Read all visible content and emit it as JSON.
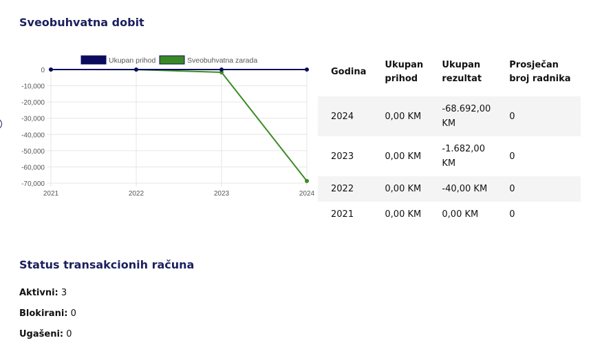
{
  "sections": {
    "profit_title": "Sveobuhvatna dobit",
    "status_title": "Status transakcionih računa"
  },
  "chart_data": {
    "type": "line",
    "x": [
      "2021",
      "2022",
      "2023",
      "2024"
    ],
    "series": [
      {
        "name": "Ukupan prihod",
        "color": "#0b0b5e",
        "values": [
          0,
          0,
          0,
          0
        ]
      },
      {
        "name": "Sveobuhvatna zarada",
        "color": "#3a8a23",
        "values": [
          0,
          -40,
          -1682,
          -68692
        ]
      }
    ],
    "y_ticks": [
      "0",
      "-10,000",
      "-20,000",
      "-30,000",
      "-40,000",
      "-50,000",
      "-60,000",
      "-70,000"
    ],
    "y_tick_values": [
      0,
      -10000,
      -20000,
      -30000,
      -40000,
      -50000,
      -60000,
      -70000
    ],
    "ylim": [
      -70000,
      0
    ],
    "legend_position": "top",
    "grid": true
  },
  "table": {
    "headers": [
      "Godina",
      "Ukupan prihod",
      "Ukupan rezultat",
      "Prosječan broj radnika"
    ],
    "rows": [
      [
        "2024",
        "0,00 KM",
        "-68.692,00 KM",
        "0"
      ],
      [
        "2023",
        "0,00 KM",
        "-1.682,00 KM",
        "0"
      ],
      [
        "2022",
        "0,00 KM",
        "-40,00 KM",
        "0"
      ],
      [
        "2021",
        "0,00 KM",
        "0,00 KM",
        "0"
      ]
    ]
  },
  "status": [
    {
      "label": "Aktivni:",
      "value": "3"
    },
    {
      "label": "Blokirani:",
      "value": "0"
    },
    {
      "label": "Ugašeni:",
      "value": "0"
    }
  ]
}
